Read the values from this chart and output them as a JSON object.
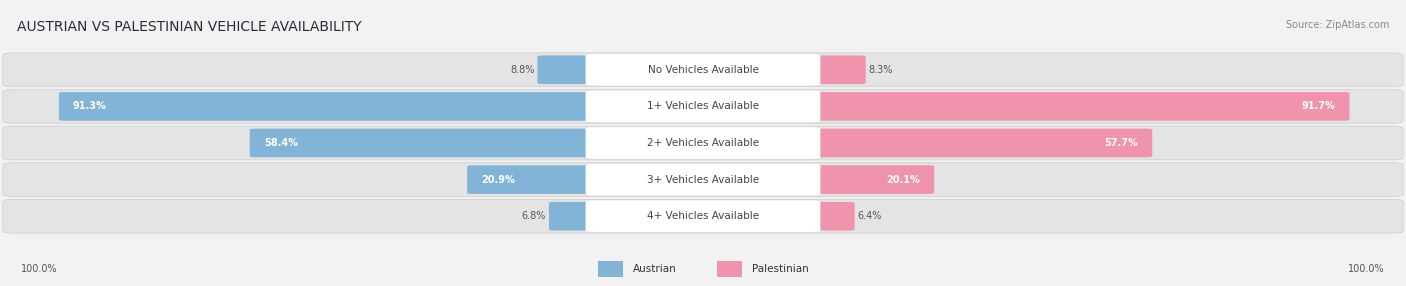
{
  "title": "AUSTRIAN VS PALESTINIAN VEHICLE AVAILABILITY",
  "source": "Source: ZipAtlas.com",
  "categories": [
    "No Vehicles Available",
    "1+ Vehicles Available",
    "2+ Vehicles Available",
    "3+ Vehicles Available",
    "4+ Vehicles Available"
  ],
  "austrian_values": [
    8.8,
    91.3,
    58.4,
    20.9,
    6.8
  ],
  "palestinian_values": [
    8.3,
    91.7,
    57.7,
    20.1,
    6.4
  ],
  "austrian_color": "#82b4d8",
  "palestinian_color": "#f093ac",
  "background_color": "#f2f2f2",
  "row_bg_color": "#e4e4e4",
  "max_value": 100.0,
  "figsize": [
    14.06,
    2.86
  ],
  "dpi": 100,
  "title_fontsize": 10,
  "label_fontsize": 7.5,
  "value_fontsize": 7.0
}
